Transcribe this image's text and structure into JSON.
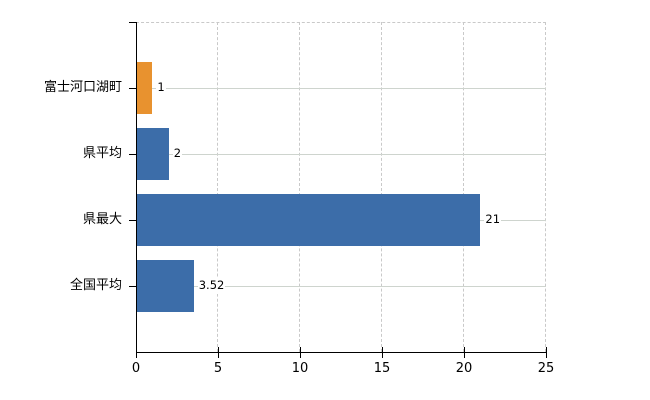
{
  "chart_data": {
    "type": "bar",
    "orientation": "horizontal",
    "title": "",
    "xlabel": "",
    "ylabel": "",
    "categories": [
      "富士河口湖町",
      "県平均",
      "県最大",
      "全国平均"
    ],
    "values": [
      1,
      2,
      21,
      3.52
    ],
    "value_labels": [
      "1",
      "2",
      "21",
      "3.52"
    ],
    "bar_colors": [
      "#E8922F",
      "#3C6DA9",
      "#3C6DA9",
      "#3C6DA9"
    ],
    "xlim": [
      0,
      25
    ],
    "xticks": [
      0,
      5,
      10,
      15,
      20,
      25
    ],
    "xtick_labels": [
      "0",
      "5",
      "10",
      "15",
      "20",
      "25"
    ],
    "grid": "on",
    "legend": "none"
  },
  "colors": {
    "grid_vertical": "#c9c9c9",
    "grid_horizontal": "#ced4ce",
    "axis": "#000000",
    "text": "#000000",
    "background": "#ffffff",
    "highlight_bar": "#E8922F",
    "default_bar": "#3C6DA9"
  }
}
